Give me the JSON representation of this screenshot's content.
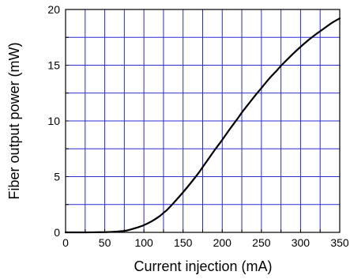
{
  "chart_data": {
    "type": "line",
    "title": "",
    "xlabel": "Current injection (mA)",
    "ylabel": "Fiber output power (mW)",
    "xlim": [
      0,
      350
    ],
    "ylim": [
      0,
      20
    ],
    "x_ticks": [
      0,
      50,
      100,
      150,
      200,
      250,
      300,
      350
    ],
    "y_ticks": [
      0,
      5,
      10,
      15,
      20
    ],
    "x_tick_labels": [
      "0",
      "50",
      "100",
      "150",
      "200",
      "250",
      "300",
      "350"
    ],
    "y_tick_labels": [
      "0",
      "5",
      "10",
      "15",
      "20"
    ],
    "x_grid": [
      0,
      25,
      50,
      75,
      100,
      125,
      150,
      175,
      200,
      225,
      250,
      275,
      300,
      325,
      350
    ],
    "y_grid": [
      0,
      2.5,
      5,
      7.5,
      10,
      12.5,
      15,
      17.5,
      20
    ],
    "grid": true,
    "grid_color": "#2b2bd4",
    "line_color": "#000000",
    "series": [
      {
        "x": [
          0,
          25,
          50,
          60,
          70,
          75,
          80,
          90,
          100,
          110,
          120,
          125,
          130,
          140,
          150,
          160,
          170,
          175,
          180,
          190,
          200,
          210,
          220,
          225,
          230,
          240,
          250,
          260,
          270,
          275,
          280,
          290,
          300,
          310,
          320,
          325,
          330,
          340,
          350
        ],
        "y": [
          0,
          0,
          0.02,
          0.05,
          0.1,
          0.13,
          0.2,
          0.4,
          0.65,
          1.0,
          1.45,
          1.75,
          2.05,
          2.8,
          3.6,
          4.45,
          5.35,
          5.85,
          6.35,
          7.35,
          8.3,
          9.3,
          10.25,
          10.75,
          11.2,
          12.1,
          12.95,
          13.8,
          14.55,
          14.95,
          15.3,
          16.0,
          16.65,
          17.25,
          17.8,
          18.05,
          18.3,
          18.8,
          19.2
        ]
      }
    ]
  }
}
